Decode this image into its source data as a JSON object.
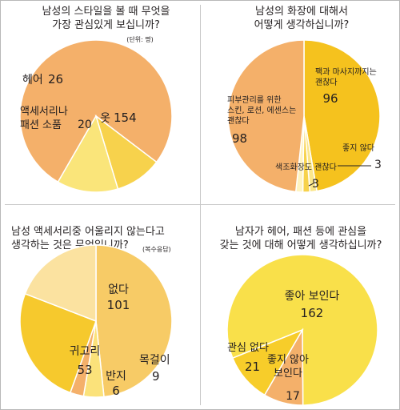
{
  "chart_data": [
    {
      "type": "pie",
      "title_line1": "남성의 스타일을 볼 때 무엇을",
      "title_line2": "가장 관심있게 보십니까?",
      "note": "(단위: 명)",
      "slices": [
        {
          "label": "옷",
          "value": 154,
          "color": "#f4b06a"
        },
        {
          "label": "액세서리나 패션 소품",
          "value": 20,
          "color": "#f7d24c"
        },
        {
          "label": "헤어",
          "value": 26,
          "color": "#fae57a"
        }
      ]
    },
    {
      "type": "pie",
      "title_line1": "남성의 화장에 대해서",
      "title_line2": "어떻게 생각하십니까?",
      "slices": [
        {
          "label": "팩과 마사지까지는 괜찮다",
          "value": 96,
          "color": "#f5c21e"
        },
        {
          "label": "좋지 않다",
          "value": 3,
          "color": "#fbe68a"
        },
        {
          "label": "",
          "value": 3,
          "color": "#f7d24c"
        },
        {
          "label": "색조화장도 괜찮다",
          "value": 3,
          "color": "#fff4c0"
        },
        {
          "label": "피부관리를 위한 스킨, 로션, 에센스는 괜찮다",
          "value": 98,
          "color": "#f4b06a"
        }
      ]
    },
    {
      "type": "pie",
      "title_line1": "남성 액세서리중 어울리지 않는다고",
      "title_line2": "생각하는 것은 무엇입니까?",
      "note": "(복수응답)",
      "slices": [
        {
          "label": "없다",
          "value": 101,
          "color": "#f7cb66"
        },
        {
          "label": "목걸이",
          "value": 9,
          "color": "#fbe27a"
        },
        {
          "label": "반지",
          "value": 6,
          "color": "#f4b06a"
        },
        {
          "label": "귀고리",
          "value": 53,
          "color": "#f6c92d"
        },
        {
          "label": "",
          "value": 40,
          "color": "#fbe2a0"
        }
      ]
    },
    {
      "type": "pie",
      "title_line1": "남자가 헤어, 패션 등에 관심을",
      "title_line2": "갖는 것에 대해 어떻게 생각하십니까?",
      "slices": [
        {
          "label": "좋아 보인다",
          "value": 162,
          "color": "#f9e04a"
        },
        {
          "label": "좋지 않아 보인다",
          "value": 17,
          "color": "#f4b06a"
        },
        {
          "label": "관심 없다",
          "value": 21,
          "color": "#f7cd2a"
        }
      ]
    }
  ]
}
